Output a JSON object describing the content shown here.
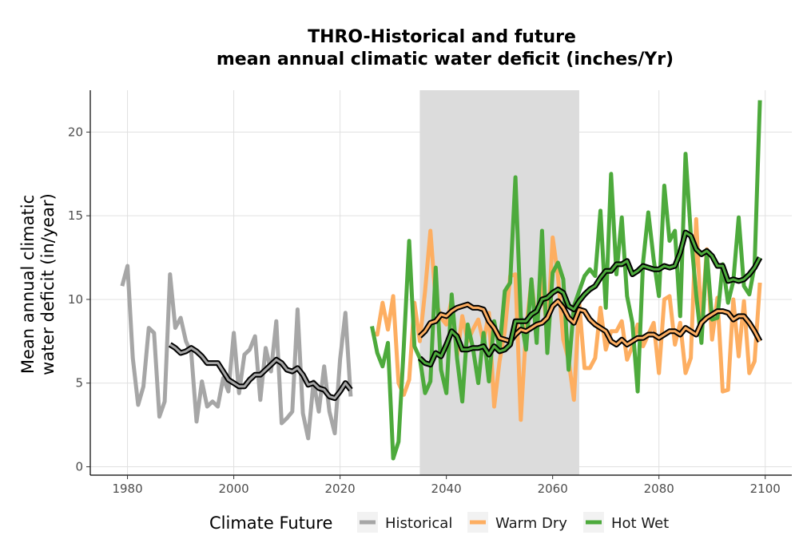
{
  "chart_data": {
    "type": "line",
    "title_lines": [
      "THRO-Historical and future",
      "mean annual climatic water deficit (inches/Yr)"
    ],
    "xlabel": "",
    "ylabel_lines": [
      "Mean annual climatic",
      "water deficit (in/year)"
    ],
    "xlim": [
      1973,
      2105
    ],
    "ylim": [
      -0.5,
      22.5
    ],
    "x_ticks": [
      1980,
      2000,
      2020,
      2040,
      2060,
      2080,
      2100
    ],
    "y_ticks": [
      0,
      5,
      10,
      15,
      20
    ],
    "grid": true,
    "shaded_period": [
      2035,
      2065
    ],
    "legend": {
      "title": "Climate Future",
      "position": "bottom",
      "entries": [
        "Historical",
        "Warm Dry",
        "Hot Wet"
      ]
    },
    "colors": {
      "Historical": "#a6a6a6",
      "Warm Dry": "#fdae61",
      "Hot Wet": "#4daa3c",
      "shade": "#dcdcdc",
      "grid": "#e0e0e0",
      "smooth": "#000000"
    },
    "series": [
      {
        "name": "Historical",
        "x": [
          1979,
          1980,
          1981,
          1982,
          1983,
          1984,
          1985,
          1986,
          1987,
          1988,
          1989,
          1990,
          1991,
          1992,
          1993,
          1994,
          1995,
          1996,
          1997,
          1998,
          1999,
          2000,
          2001,
          2002,
          2003,
          2004,
          2005,
          2006,
          2007,
          2008,
          2009,
          2010,
          2011,
          2012,
          2013,
          2014,
          2015,
          2016,
          2017,
          2018,
          2019,
          2020,
          2021,
          2022
        ],
        "values": [
          10.8,
          12.0,
          6.5,
          3.7,
          4.8,
          8.3,
          8.0,
          3.0,
          3.9,
          11.5,
          8.3,
          8.9,
          7.5,
          6.8,
          2.7,
          5.1,
          3.6,
          3.9,
          3.6,
          5.3,
          4.5,
          8.0,
          4.4,
          6.7,
          7.0,
          7.8,
          4.0,
          7.1,
          5.7,
          8.7,
          2.6,
          2.9,
          3.3,
          9.4,
          3.2,
          1.7,
          5.1,
          3.3,
          6.0,
          3.3,
          2.0,
          6.4,
          9.2,
          4.2
        ],
        "smooth_x": [
          1988,
          1989,
          1990,
          1991,
          1992,
          1993,
          1994,
          1995,
          1996,
          1997,
          1998,
          1999,
          2000,
          2001,
          2002,
          2003,
          2004,
          2005,
          2006,
          2007,
          2008,
          2009,
          2010,
          2011,
          2012,
          2013,
          2014,
          2015,
          2016,
          2017,
          2018,
          2019,
          2020,
          2021,
          2022
        ],
        "smooth": [
          7.3,
          7.1,
          6.8,
          6.9,
          7.1,
          6.9,
          6.6,
          6.2,
          6.2,
          6.2,
          5.7,
          5.2,
          5.0,
          4.8,
          4.8,
          5.2,
          5.5,
          5.5,
          5.8,
          6.1,
          6.4,
          6.2,
          5.8,
          5.7,
          5.9,
          5.5,
          4.9,
          5.0,
          4.7,
          4.6,
          4.2,
          4.1,
          4.5,
          5.0,
          4.6
        ]
      },
      {
        "name": "Warm Dry",
        "x": [
          2026,
          2027,
          2028,
          2029,
          2030,
          2031,
          2032,
          2033,
          2034,
          2035,
          2036,
          2037,
          2038,
          2039,
          2040,
          2041,
          2042,
          2043,
          2044,
          2045,
          2046,
          2047,
          2048,
          2049,
          2050,
          2051,
          2052,
          2053,
          2054,
          2055,
          2056,
          2057,
          2058,
          2059,
          2060,
          2061,
          2062,
          2063,
          2064,
          2065,
          2066,
          2067,
          2068,
          2069,
          2070,
          2071,
          2072,
          2073,
          2074,
          2075,
          2076,
          2077,
          2078,
          2079,
          2080,
          2081,
          2082,
          2083,
          2084,
          2085,
          2086,
          2087,
          2088,
          2089,
          2090,
          2091,
          2092,
          2093,
          2094,
          2095,
          2096,
          2097,
          2098,
          2099
        ],
        "values": [
          8.0,
          7.9,
          9.8,
          8.2,
          10.2,
          5.0,
          4.3,
          5.2,
          9.8,
          7.5,
          10.5,
          14.1,
          9.9,
          8.9,
          8.5,
          10.0,
          6.6,
          9.0,
          7.5,
          8.2,
          8.8,
          7.4,
          9.2,
          3.6,
          6.3,
          8.1,
          11.4,
          11.5,
          2.8,
          8.2,
          11.1,
          8.3,
          11.5,
          7.7,
          13.7,
          11.4,
          7.6,
          6.4,
          4.0,
          9.8,
          5.9,
          5.9,
          6.5,
          9.5,
          7.0,
          8.1,
          8.1,
          8.7,
          6.4,
          7.2,
          8.5,
          7.2,
          7.9,
          8.6,
          5.6,
          10.0,
          10.2,
          7.3,
          8.6,
          5.6,
          6.5,
          14.8,
          8.4,
          13.0,
          7.6,
          10.1,
          4.5,
          4.6,
          10.0,
          6.6,
          9.9,
          5.6,
          6.3,
          11.0
        ],
        "smooth_x": [
          2035,
          2036,
          2037,
          2038,
          2039,
          2040,
          2041,
          2042,
          2043,
          2044,
          2045,
          2046,
          2047,
          2048,
          2049,
          2050,
          2051,
          2052,
          2053,
          2054,
          2055,
          2056,
          2057,
          2058,
          2059,
          2060,
          2061,
          2062,
          2063,
          2064,
          2065,
          2066,
          2067,
          2068,
          2069,
          2070,
          2071,
          2072,
          2073,
          2074,
          2075,
          2076,
          2077,
          2078,
          2079,
          2080,
          2081,
          2082,
          2083,
          2084,
          2085,
          2086,
          2087,
          2088,
          2089,
          2090,
          2091,
          2092,
          2093,
          2094,
          2095,
          2096,
          2097,
          2098,
          2099
        ],
        "smooth": [
          7.8,
          8.1,
          8.6,
          8.7,
          9.1,
          9.0,
          9.3,
          9.5,
          9.6,
          9.7,
          9.5,
          9.5,
          9.4,
          8.7,
          8.3,
          7.7,
          7.6,
          7.5,
          7.9,
          8.2,
          8.1,
          8.3,
          8.5,
          8.6,
          8.9,
          9.6,
          9.9,
          9.5,
          8.9,
          8.6,
          9.4,
          9.3,
          8.8,
          8.5,
          8.3,
          8.1,
          7.5,
          7.3,
          7.6,
          7.3,
          7.5,
          7.7,
          7.7,
          7.9,
          7.9,
          7.7,
          7.9,
          8.1,
          8.1,
          7.9,
          8.3,
          8.1,
          7.9,
          8.6,
          8.9,
          9.1,
          9.3,
          9.3,
          9.2,
          8.8,
          9.0,
          9.0,
          8.6,
          8.1,
          7.5,
          7.7
        ]
      },
      {
        "name": "Hot Wet",
        "x": [
          2026,
          2027,
          2028,
          2029,
          2030,
          2031,
          2032,
          2033,
          2034,
          2035,
          2036,
          2037,
          2038,
          2039,
          2040,
          2041,
          2042,
          2043,
          2044,
          2045,
          2046,
          2047,
          2048,
          2049,
          2050,
          2051,
          2052,
          2053,
          2054,
          2055,
          2056,
          2057,
          2058,
          2059,
          2060,
          2061,
          2062,
          2063,
          2064,
          2065,
          2066,
          2067,
          2068,
          2069,
          2070,
          2071,
          2072,
          2073,
          2074,
          2075,
          2076,
          2077,
          2078,
          2079,
          2080,
          2081,
          2082,
          2083,
          2084,
          2085,
          2086,
          2087,
          2088,
          2089,
          2090,
          2091,
          2092,
          2093,
          2094,
          2095,
          2096,
          2097,
          2098,
          2099
        ],
        "values": [
          8.4,
          6.8,
          6.0,
          7.4,
          0.5,
          1.5,
          7.2,
          13.5,
          7.2,
          6.5,
          4.4,
          5.1,
          11.9,
          5.8,
          4.4,
          10.3,
          6.5,
          3.9,
          8.5,
          7.1,
          5.0,
          8.0,
          5.1,
          8.7,
          7.0,
          10.5,
          11.0,
          17.3,
          9.0,
          7.0,
          11.2,
          7.4,
          14.1,
          6.8,
          11.6,
          12.2,
          11.2,
          5.8,
          9.6,
          10.5,
          11.4,
          11.8,
          11.4,
          15.3,
          9.5,
          17.5,
          11.5,
          14.9,
          10.2,
          8.6,
          4.5,
          12.2,
          15.2,
          12.4,
          10.2,
          16.8,
          13.5,
          14.1,
          9.0,
          18.7,
          13.9,
          10.3,
          7.4,
          12.8,
          8.8,
          8.9,
          12.1,
          9.8,
          11.1,
          14.9,
          10.8,
          10.3,
          12.0,
          21.9
        ],
        "smooth_x": [
          2035,
          2036,
          2037,
          2038,
          2039,
          2040,
          2041,
          2042,
          2043,
          2044,
          2045,
          2046,
          2047,
          2048,
          2049,
          2050,
          2051,
          2052,
          2053,
          2054,
          2055,
          2056,
          2057,
          2058,
          2059,
          2060,
          2061,
          2062,
          2063,
          2064,
          2065,
          2066,
          2067,
          2068,
          2069,
          2070,
          2071,
          2072,
          2073,
          2074,
          2075,
          2076,
          2077,
          2078,
          2079,
          2080,
          2081,
          2082,
          2083,
          2084,
          2085,
          2086,
          2087,
          2088,
          2089,
          2090,
          2091,
          2092,
          2093,
          2094,
          2095,
          2096,
          2097,
          2098,
          2099
        ],
        "smooth": [
          6.5,
          6.2,
          6.1,
          6.8,
          6.6,
          7.3,
          8.1,
          7.8,
          7.0,
          7.0,
          7.1,
          7.1,
          7.2,
          6.7,
          7.2,
          6.9,
          7.0,
          7.3,
          8.7,
          8.7,
          8.7,
          9.1,
          9.3,
          10.0,
          10.1,
          10.4,
          10.6,
          10.4,
          9.6,
          9.4,
          9.9,
          10.3,
          10.6,
          10.8,
          11.3,
          11.7,
          11.7,
          12.1,
          12.1,
          12.3,
          11.5,
          11.7,
          12.0,
          11.9,
          11.8,
          11.8,
          12.0,
          11.9,
          12.0,
          12.8,
          14.0,
          13.8,
          13.0,
          12.7,
          12.9,
          12.6,
          12.0,
          12.0,
          11.1,
          11.2,
          11.1,
          11.2,
          11.5,
          11.9,
          12.5
        ]
      }
    ]
  }
}
